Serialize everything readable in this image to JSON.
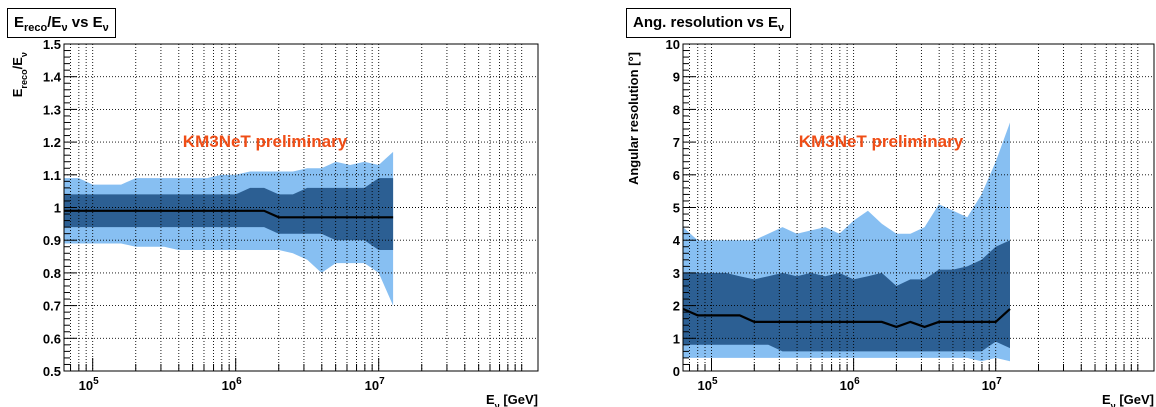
{
  "chart_data": [
    {
      "type": "area",
      "title": "E_reco/E_ν vs E_ν",
      "title_parts": {
        "a": "E",
        "a_sub": "reco",
        "b": "/E",
        "b_sub": "ν",
        "c": " vs E",
        "c_sub": "ν"
      },
      "xlabel": "E_ν [GeV]",
      "xlabel_parts": {
        "a": "E",
        "a_sub": "ν",
        "b": " [GeV]"
      },
      "ylabel": "E_reco/E_ν",
      "ylabel_parts": {
        "a": "E",
        "a_sub": "reco",
        "b": "/E",
        "b_sub": "ν"
      },
      "annotation": "KM3NeT preliminary",
      "xscale": "log",
      "xlim": [
        63000,
        130000000
      ],
      "ylim": [
        0.5,
        1.5
      ],
      "yticks": [
        0.5,
        0.6,
        0.7,
        0.8,
        0.9,
        1,
        1.1,
        1.2,
        1.3,
        1.4,
        1.5
      ],
      "yticklabels": [
        "0.5",
        "0.6",
        "0.7",
        "0.8",
        "0.9",
        "1",
        "1.1",
        "1.2",
        "1.3",
        "1.4",
        "1.5"
      ],
      "xticks": [
        100000,
        1000000,
        10000000
      ],
      "xticklabels": [
        [
          "10",
          "5"
        ],
        [
          "10",
          "6"
        ],
        [
          "10",
          "7"
        ]
      ],
      "grid": true,
      "x": [
        63000,
        80000,
        100000,
        126000,
        158000,
        200000,
        251000,
        316000,
        398000,
        501000,
        631000,
        794000,
        1000000,
        1260000,
        1580000,
        2000000,
        2510000,
        3160000,
        3980000,
        5010000,
        6310000,
        7940000,
        10000000,
        12600000
      ],
      "outer_upper": [
        1.09,
        1.09,
        1.07,
        1.07,
        1.07,
        1.09,
        1.09,
        1.09,
        1.09,
        1.09,
        1.09,
        1.1,
        1.1,
        1.11,
        1.11,
        1.11,
        1.11,
        1.12,
        1.12,
        1.14,
        1.13,
        1.14,
        1.13,
        1.17
      ],
      "outer_lower": [
        0.89,
        0.89,
        0.89,
        0.89,
        0.89,
        0.88,
        0.88,
        0.88,
        0.87,
        0.87,
        0.87,
        0.87,
        0.87,
        0.87,
        0.87,
        0.87,
        0.86,
        0.84,
        0.8,
        0.83,
        0.83,
        0.83,
        0.8,
        0.7
      ],
      "inner_upper": [
        1.04,
        1.04,
        1.04,
        1.04,
        1.04,
        1.04,
        1.04,
        1.04,
        1.04,
        1.04,
        1.04,
        1.04,
        1.04,
        1.06,
        1.06,
        1.04,
        1.04,
        1.06,
        1.06,
        1.06,
        1.06,
        1.06,
        1.09,
        1.09
      ],
      "inner_lower": [
        0.94,
        0.94,
        0.94,
        0.94,
        0.94,
        0.94,
        0.94,
        0.94,
        0.94,
        0.94,
        0.94,
        0.94,
        0.94,
        0.94,
        0.94,
        0.92,
        0.92,
        0.92,
        0.92,
        0.9,
        0.9,
        0.9,
        0.87,
        0.87
      ],
      "median": [
        0.99,
        0.99,
        0.99,
        0.99,
        0.99,
        0.99,
        0.99,
        0.99,
        0.99,
        0.99,
        0.99,
        0.99,
        0.99,
        0.99,
        0.99,
        0.97,
        0.97,
        0.97,
        0.97,
        0.97,
        0.97,
        0.97,
        0.97,
        0.97
      ]
    },
    {
      "type": "area",
      "title": "Ang. resolution vs E_ν",
      "title_parts": {
        "a": "Ang. resolution vs E",
        "a_sub": "ν"
      },
      "xlabel": "E_ν [GeV]",
      "xlabel_parts": {
        "a": "E",
        "a_sub": "ν",
        "b": " [GeV]"
      },
      "ylabel": "Angular resolution [°]",
      "annotation": "KM3NeT preliminary",
      "xscale": "log",
      "xlim": [
        63000,
        130000000
      ],
      "ylim": [
        0,
        10
      ],
      "yticks": [
        0,
        1,
        2,
        3,
        4,
        5,
        6,
        7,
        8,
        9,
        10
      ],
      "yticklabels": [
        "0",
        "1",
        "2",
        "3",
        "4",
        "5",
        "6",
        "7",
        "8",
        "9",
        "10"
      ],
      "xticks": [
        100000,
        1000000,
        10000000
      ],
      "xticklabels": [
        [
          "10",
          "5"
        ],
        [
          "10",
          "6"
        ],
        [
          "10",
          "7"
        ]
      ],
      "grid": true,
      "x": [
        63000,
        80000,
        100000,
        126000,
        158000,
        200000,
        251000,
        316000,
        398000,
        501000,
        631000,
        794000,
        1000000,
        1260000,
        1580000,
        2000000,
        2510000,
        3160000,
        3980000,
        5010000,
        6310000,
        7940000,
        10000000,
        12600000
      ],
      "outer_upper": [
        4.4,
        4.0,
        4.0,
        4.0,
        4.0,
        4.0,
        4.2,
        4.4,
        4.2,
        4.3,
        4.4,
        4.2,
        4.6,
        4.9,
        4.5,
        4.2,
        4.2,
        4.4,
        5.1,
        4.9,
        4.7,
        5.4,
        6.4,
        7.6
      ],
      "outer_lower": [
        0.4,
        0.4,
        0.4,
        0.4,
        0.4,
        0.4,
        0.4,
        0.4,
        0.4,
        0.4,
        0.4,
        0.4,
        0.4,
        0.4,
        0.4,
        0.4,
        0.4,
        0.4,
        0.4,
        0.4,
        0.4,
        0.3,
        0.4,
        0.3
      ],
      "inner_upper": [
        3.0,
        3.0,
        3.0,
        3.0,
        2.9,
        2.8,
        2.9,
        3.0,
        2.9,
        3.0,
        2.9,
        3.0,
        2.8,
        2.9,
        3.0,
        2.6,
        2.8,
        2.8,
        3.1,
        3.1,
        3.2,
        3.4,
        3.8,
        4.0
      ],
      "inner_lower": [
        0.8,
        0.8,
        0.8,
        0.8,
        0.8,
        0.8,
        0.8,
        0.6,
        0.6,
        0.6,
        0.6,
        0.6,
        0.6,
        0.6,
        0.6,
        0.6,
        0.6,
        0.6,
        0.6,
        0.6,
        0.6,
        0.6,
        0.9,
        0.7
      ],
      "median": [
        1.9,
        1.7,
        1.7,
        1.7,
        1.7,
        1.5,
        1.5,
        1.5,
        1.5,
        1.5,
        1.5,
        1.5,
        1.5,
        1.5,
        1.5,
        1.35,
        1.5,
        1.35,
        1.5,
        1.5,
        1.5,
        1.5,
        1.5,
        1.9
      ]
    }
  ],
  "colors": {
    "outer_band": "#87bff2",
    "inner_band": "#2c5f93",
    "median": "#000000",
    "annotation": "#ef4d16",
    "grid": "#000000"
  }
}
